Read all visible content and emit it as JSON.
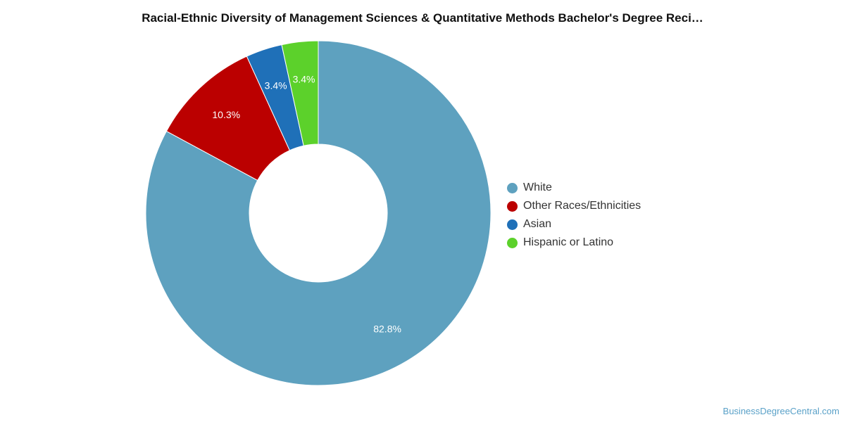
{
  "chart_data": {
    "type": "pie",
    "title": "Racial-Ethnic Diversity of Management Sciences & Quantitative Methods Bachelor's Degree Reci…",
    "categories": [
      "White",
      "Other Races/Ethnicities",
      "Asian",
      "Hispanic or Latino"
    ],
    "values": [
      82.8,
      10.3,
      3.4,
      3.4
    ],
    "value_labels": [
      "82.8%",
      "10.3%",
      "3.4%",
      "3.4%"
    ],
    "colors": [
      "#5ea1bf",
      "#bb0000",
      "#1f70b8",
      "#5cd12b"
    ],
    "donut": true,
    "legend_position": "right",
    "unit": "%"
  },
  "watermark": "BusinessDegreeCentral.com"
}
